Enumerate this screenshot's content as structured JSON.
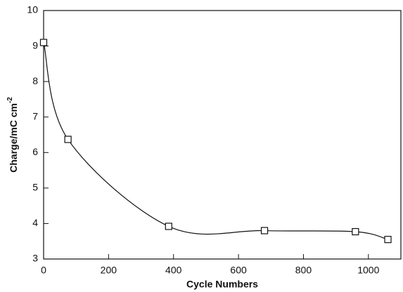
{
  "chart_data": {
    "type": "line",
    "x_label": "Cycle Numbers",
    "y_label": "Charge/mC cm",
    "y_label_superscript": "-2",
    "x": [
      0,
      75,
      385,
      680,
      960,
      1060
    ],
    "values": [
      9.1,
      6.37,
      3.92,
      3.8,
      3.77,
      3.55
    ],
    "color": "#111111",
    "marker": "square",
    "smooth": true,
    "xlim": [
      0,
      1100
    ],
    "xticks": [
      0,
      200,
      400,
      600,
      800,
      1000
    ],
    "ylim": [
      3,
      10
    ],
    "yticks": [
      3,
      4,
      5,
      6,
      7,
      8,
      9,
      10
    ],
    "grid": false
  }
}
